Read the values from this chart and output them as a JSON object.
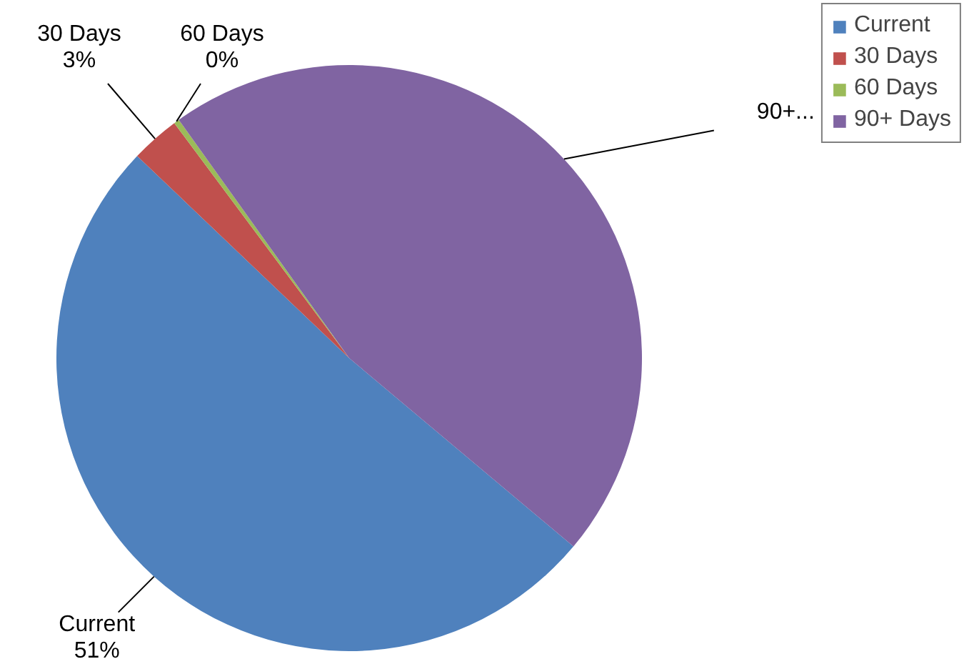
{
  "chart_data": {
    "type": "pie",
    "categories": [
      "Current",
      "30 Days",
      "60 Days",
      "90+ Days"
    ],
    "values": [
      51,
      2.7,
      0.3,
      46
    ],
    "colors": [
      "#4f81bd",
      "#c0504d",
      "#9bbb59",
      "#8064a2"
    ],
    "value_labels": [
      "Current\n51%",
      "30 Days\n3%",
      "60 Days\n0%",
      "90+..."
    ],
    "legend": "top right"
  }
}
